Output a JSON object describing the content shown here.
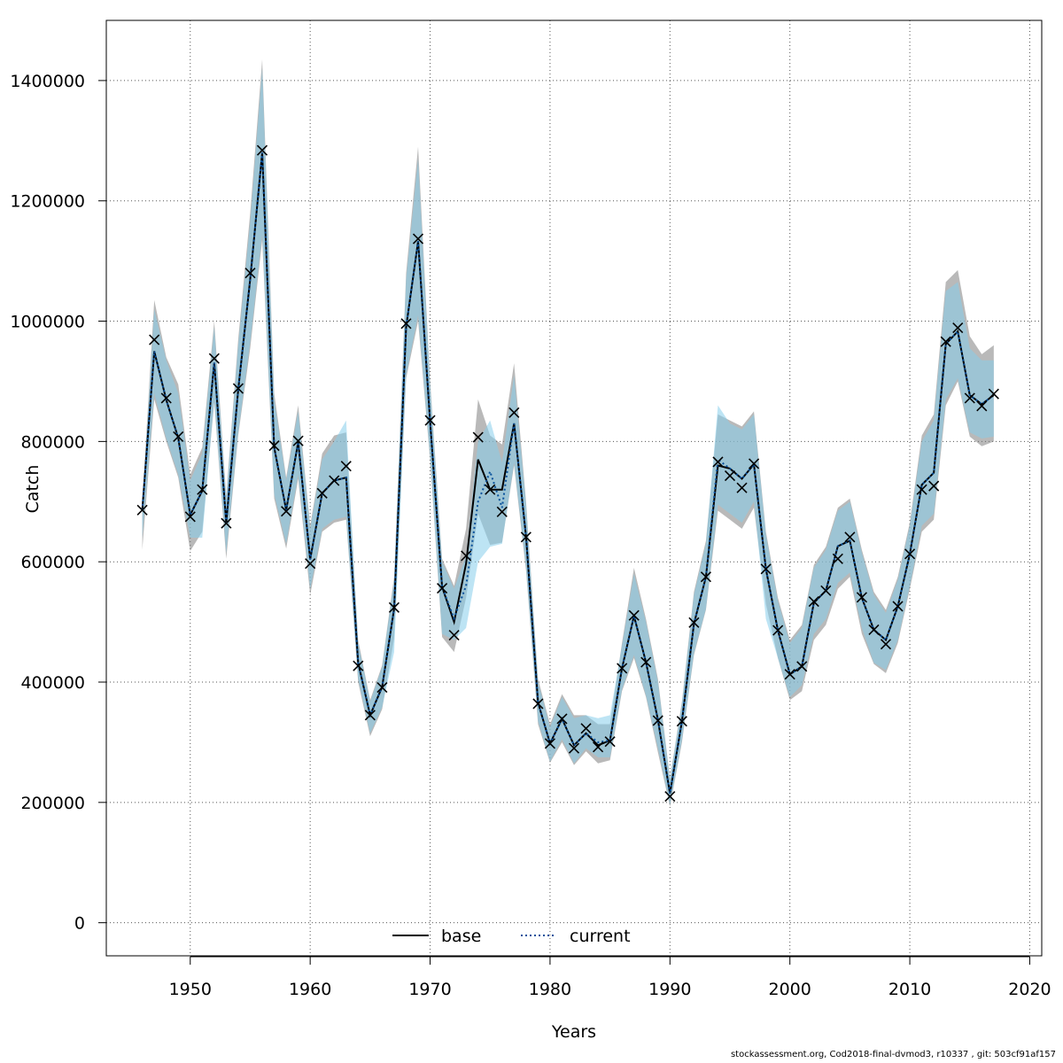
{
  "chart_data": {
    "type": "line",
    "xlabel": "Years",
    "ylabel": "Catch",
    "xlim": [
      1943,
      2021
    ],
    "ylim": [
      -55000,
      1500000
    ],
    "x_ticks": [
      1950,
      1960,
      1970,
      1980,
      1990,
      2000,
      2010,
      2020
    ],
    "x_tick_labels": [
      "1950",
      "1960",
      "1970",
      "1980",
      "1990",
      "2000",
      "2010",
      "2020"
    ],
    "y_ticks": [
      0,
      200000,
      400000,
      600000,
      800000,
      1000000,
      1200000,
      1400000
    ],
    "y_tick_labels": [
      "0",
      "200000",
      "400000",
      "600000",
      "800000",
      "1000000",
      "1200000",
      "1400000"
    ],
    "grid": true,
    "legend_position": "bottom-center",
    "colors": {
      "base_line": "#000000",
      "current_line": "#08519c",
      "base_band": "#808080",
      "current_band": "#87ceeb"
    },
    "x": [
      1946,
      1947,
      1948,
      1949,
      1950,
      1951,
      1952,
      1953,
      1954,
      1955,
      1956,
      1957,
      1958,
      1959,
      1960,
      1961,
      1962,
      1963,
      1964,
      1965,
      1966,
      1967,
      1968,
      1969,
      1970,
      1971,
      1972,
      1973,
      1974,
      1975,
      1976,
      1977,
      1978,
      1979,
      1980,
      1981,
      1982,
      1983,
      1984,
      1985,
      1986,
      1987,
      1988,
      1989,
      1990,
      1991,
      1992,
      1993,
      1994,
      1995,
      1996,
      1997,
      1998,
      1999,
      2000,
      2001,
      2002,
      2003,
      2004,
      2005,
      2006,
      2007,
      2008,
      2009,
      2010,
      2011,
      2012,
      2013,
      2014,
      2015,
      2016,
      2017
    ],
    "observed": [
      686000,
      969000,
      872000,
      808000,
      675000,
      720000,
      938000,
      664000,
      888000,
      1080000,
      1284000,
      793000,
      684000,
      801000,
      597000,
      714000,
      735000,
      759000,
      427000,
      345000,
      391000,
      524000,
      996000,
      1137000,
      835000,
      556000,
      478000,
      610000,
      807000,
      720000,
      683000,
      848000,
      641000,
      364000,
      298000,
      339000,
      290000,
      323000,
      292000,
      301000,
      423000,
      511000,
      433000,
      336000,
      210000,
      335000,
      499000,
      575000,
      766000,
      743000,
      723000,
      763000,
      588000,
      486000,
      413000,
      426000,
      534000,
      552000,
      605000,
      641000,
      541000,
      487000,
      463000,
      526000,
      613000,
      720000,
      726000,
      966000,
      989000,
      872000,
      859000,
      879000
    ],
    "series": [
      {
        "name": "base",
        "values": [
          686000,
          950000,
          869000,
          806000,
          678000,
          718000,
          931000,
          665000,
          886000,
          1070000,
          1280000,
          790000,
          686000,
          799000,
          604000,
          714000,
          735000,
          740000,
          432000,
          345000,
          392000,
          522000,
          990000,
          1133000,
          833000,
          558000,
          500000,
          597000,
          770000,
          720000,
          720000,
          830000,
          642000,
          366000,
          298000,
          339000,
          295000,
          315000,
          295000,
          303000,
          423000,
          510000,
          433000,
          337000,
          215000,
          335000,
          497000,
          575000,
          760000,
          755000,
          738000,
          762000,
          588000,
          486000,
          413000,
          426000,
          532000,
          552000,
          626000,
          635000,
          540000,
          487000,
          470000,
          526000,
          613000,
          728000,
          748000,
          962000,
          983000,
          877000,
          862000,
          877000
        ],
        "upper": [
          700000,
          1035000,
          940000,
          895000,
          745000,
          790000,
          1000000,
          710000,
          970000,
          1180000,
          1435000,
          880000,
          740000,
          860000,
          660000,
          780000,
          810000,
          815000,
          470000,
          370000,
          428000,
          575000,
          1080000,
          1290000,
          900000,
          605000,
          560000,
          655000,
          870000,
          810000,
          795000,
          930000,
          700000,
          405000,
          330000,
          380000,
          345000,
          345000,
          330000,
          330000,
          465000,
          590000,
          505000,
          405000,
          240000,
          368000,
          550000,
          635000,
          845000,
          835000,
          825000,
          850000,
          650000,
          540000,
          470000,
          495000,
          595000,
          625000,
          690000,
          705000,
          620000,
          550000,
          520000,
          575000,
          665000,
          810000,
          845000,
          1065000,
          1085000,
          975000,
          945000,
          960000
        ],
        "lower": [
          620000,
          870000,
          800000,
          740000,
          618000,
          650000,
          865000,
          605000,
          810000,
          955000,
          1135000,
          705000,
          622000,
          738000,
          545000,
          650000,
          665000,
          670000,
          400000,
          310000,
          355000,
          472000,
          905000,
          1000000,
          770000,
          475000,
          450000,
          540000,
          680000,
          628000,
          632000,
          760000,
          585000,
          330000,
          266000,
          300000,
          262000,
          285000,
          265000,
          270000,
          385000,
          440000,
          375000,
          283000,
          193000,
          300000,
          445000,
          520000,
          685000,
          670000,
          655000,
          690000,
          530000,
          440000,
          370000,
          385000,
          470000,
          495000,
          555000,
          575000,
          480000,
          430000,
          415000,
          465000,
          555000,
          650000,
          670000,
          860000,
          900000,
          808000,
          792000,
          800000
        ]
      },
      {
        "name": "current",
        "values": [
          686000,
          950000,
          869000,
          806000,
          678000,
          718000,
          931000,
          665000,
          886000,
          1070000,
          1280000,
          790000,
          686000,
          799000,
          604000,
          714000,
          735000,
          740000,
          432000,
          345000,
          392000,
          522000,
          990000,
          1133000,
          833000,
          558000,
          506000,
          560000,
          700000,
          750000,
          690000,
          830000,
          642000,
          366000,
          298000,
          339000,
          295000,
          315000,
          300000,
          303000,
          423000,
          510000,
          433000,
          337000,
          215000,
          335000,
          497000,
          575000,
          770000,
          755000,
          738000,
          762000,
          588000,
          486000,
          413000,
          426000,
          532000,
          552000,
          626000,
          635000,
          540000,
          487000,
          470000,
          526000,
          613000,
          728000,
          748000,
          962000,
          983000,
          877000,
          862000,
          877000
        ],
        "upper": [
          690000,
          1020000,
          935000,
          880000,
          735000,
          780000,
          990000,
          705000,
          960000,
          1165000,
          1420000,
          870000,
          735000,
          850000,
          655000,
          770000,
          800000,
          835000,
          465000,
          367000,
          425000,
          570000,
          1070000,
          1270000,
          895000,
          600000,
          555000,
          610000,
          800000,
          835000,
          765000,
          910000,
          695000,
          400000,
          325000,
          375000,
          340000,
          345000,
          340000,
          345000,
          460000,
          580000,
          500000,
          400000,
          238000,
          365000,
          545000,
          630000,
          860000,
          830000,
          820000,
          845000,
          645000,
          535000,
          465000,
          490000,
          590000,
          620000,
          685000,
          700000,
          615000,
          545000,
          515000,
          570000,
          660000,
          800000,
          835000,
          1050000,
          1065000,
          955000,
          935000,
          935000
        ],
        "lower": [
          640000,
          880000,
          805000,
          745000,
          640000,
          640000,
          870000,
          615000,
          815000,
          965000,
          1145000,
          712000,
          630000,
          745000,
          555000,
          655000,
          670000,
          675000,
          405000,
          315000,
          358000,
          450000,
          910000,
          1010000,
          775000,
          480000,
          470000,
          490000,
          600000,
          625000,
          630000,
          765000,
          590000,
          335000,
          268000,
          305000,
          265000,
          290000,
          275000,
          275000,
          388000,
          445000,
          378000,
          290000,
          196000,
          304000,
          448000,
          522000,
          695000,
          680000,
          665000,
          700000,
          505000,
          440000,
          375000,
          395000,
          480000,
          505000,
          565000,
          582000,
          490000,
          432000,
          420000,
          470000,
          560000,
          660000,
          680000,
          870000,
          905000,
          815000,
          805000,
          808000
        ]
      }
    ]
  },
  "footer_text": "stockassessment.org, Cod2018-final-dvmod3, r10337 , git: 503cf91af157"
}
